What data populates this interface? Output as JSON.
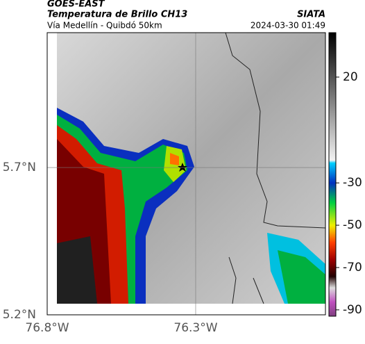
{
  "header": {
    "satellite": "GOES-EAST",
    "title": "Temperatura de Brillo CH13",
    "source": "SIATA",
    "location": "Vía Medellín - Quibdó 50km",
    "datetime": "2024-03-30 01:49"
  },
  "map": {
    "xlim": [
      -76.8,
      -75.863
    ],
    "ylim": [
      5.2,
      6.158
    ],
    "xticks": [
      {
        "value": -76.8,
        "label": "76.8°W"
      },
      {
        "value": -76.3,
        "label": "76.3°W"
      }
    ],
    "yticks": [
      {
        "value": 5.2,
        "label": "5.2°N"
      },
      {
        "value": 5.7,
        "label": "5.7°N"
      }
    ],
    "grid": true
  },
  "colorbar": {
    "lim": [
      -93,
      41
    ],
    "ticks": [
      -90,
      -70,
      -50,
      -30,
      20
    ]
  }
}
